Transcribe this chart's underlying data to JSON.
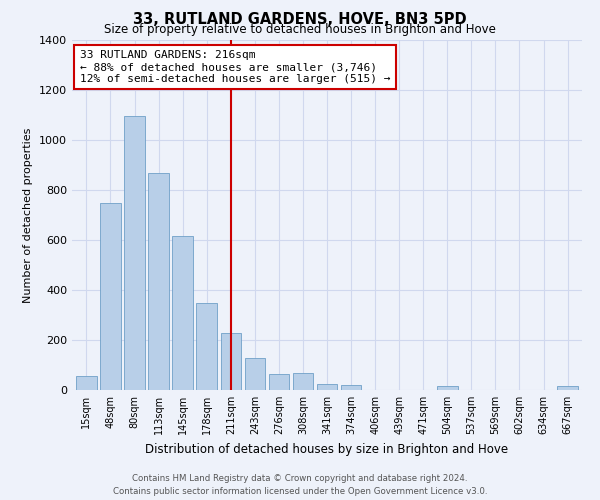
{
  "title": "33, RUTLAND GARDENS, HOVE, BN3 5PD",
  "subtitle": "Size of property relative to detached houses in Brighton and Hove",
  "xlabel": "Distribution of detached houses by size in Brighton and Hove",
  "ylabel": "Number of detached properties",
  "bar_labels": [
    "15sqm",
    "48sqm",
    "80sqm",
    "113sqm",
    "145sqm",
    "178sqm",
    "211sqm",
    "243sqm",
    "276sqm",
    "308sqm",
    "341sqm",
    "374sqm",
    "406sqm",
    "439sqm",
    "471sqm",
    "504sqm",
    "537sqm",
    "569sqm",
    "602sqm",
    "634sqm",
    "667sqm"
  ],
  "bar_values": [
    55,
    750,
    1095,
    870,
    615,
    350,
    230,
    130,
    65,
    70,
    25,
    20,
    0,
    0,
    0,
    15,
    0,
    0,
    0,
    0,
    15
  ],
  "bar_color": "#b8cfe8",
  "bar_edge_color": "#6fa0c8",
  "vline_x_index": 6,
  "vline_color": "#cc0000",
  "annotation_line1": "33 RUTLAND GARDENS: 216sqm",
  "annotation_line2": "← 88% of detached houses are smaller (3,746)",
  "annotation_line3": "12% of semi-detached houses are larger (515) →",
  "annotation_box_color": "#ffffff",
  "annotation_box_edge": "#cc0000",
  "ylim": [
    0,
    1400
  ],
  "yticks": [
    0,
    200,
    400,
    600,
    800,
    1000,
    1200,
    1400
  ],
  "footer_line1": "Contains HM Land Registry data © Crown copyright and database right 2024.",
  "footer_line2": "Contains public sector information licensed under the Open Government Licence v3.0.",
  "bg_color": "#eef2fa",
  "grid_color": "#d0d8ee"
}
